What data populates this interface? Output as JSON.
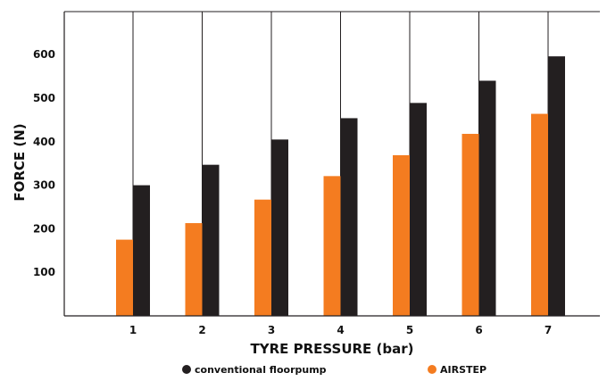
{
  "chart_data": {
    "type": "bar",
    "categories": [
      "1",
      "2",
      "3",
      "4",
      "5",
      "6",
      "7"
    ],
    "series": [
      {
        "name": "conventional floorpump",
        "values": [
          300,
          347,
          405,
          454,
          489,
          540,
          596
        ],
        "color": "#231f20"
      },
      {
        "name": "AIRSTEP",
        "values": [
          175,
          213,
          267,
          321,
          369,
          418,
          464
        ],
        "color": "#f47c20"
      }
    ],
    "y_ticks": [
      100,
      200,
      300,
      400,
      500,
      600
    ],
    "ylim": [
      0,
      700
    ],
    "xlabel": "TYRE PRESSURE (bar)",
    "ylabel": "FORCE (N)",
    "grid": "vertical",
    "legend_position": "bottom"
  }
}
